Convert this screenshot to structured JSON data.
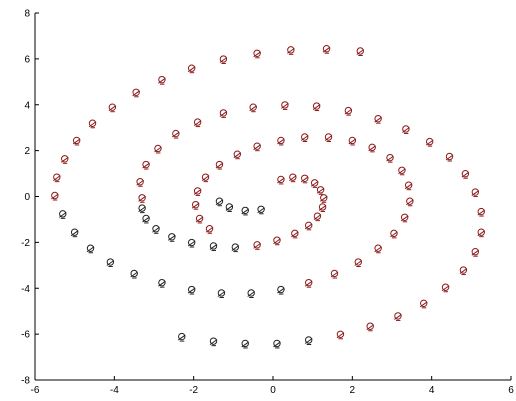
{
  "chart_data": {
    "type": "scatter",
    "title": "",
    "xlabel": "",
    "ylabel": "",
    "xlim": [
      -6,
      6
    ],
    "ylim": [
      -8,
      8
    ],
    "grid": false,
    "x_ticks": [
      "-6",
      "-4",
      "-2",
      "0",
      "2",
      "4",
      "6"
    ],
    "y_ticks": [
      "-8",
      "-6",
      "-4",
      "-2",
      "0",
      "2",
      "4",
      "6",
      "8"
    ],
    "series": [
      {
        "color": "#8b1a1a",
        "marker": "circle-with-cross",
        "points": [
          [
            0.2,
            0.7
          ],
          [
            0.5,
            0.8
          ],
          [
            0.8,
            0.75
          ],
          [
            1.05,
            0.55
          ],
          [
            1.2,
            0.25
          ],
          [
            1.28,
            -0.1
          ],
          [
            1.25,
            -0.5
          ],
          [
            1.12,
            -0.9
          ],
          [
            0.9,
            -1.3
          ],
          [
            0.55,
            -1.65
          ],
          [
            0.1,
            -1.95
          ],
          [
            -0.4,
            -2.15
          ],
          [
            -1.6,
            -1.45
          ],
          [
            -1.85,
            -1.0
          ],
          [
            -1.95,
            -0.4
          ],
          [
            -1.9,
            0.2
          ],
          [
            -1.7,
            0.8
          ],
          [
            -1.35,
            1.35
          ],
          [
            -0.9,
            1.8
          ],
          [
            -0.4,
            2.15
          ],
          [
            0.2,
            2.4
          ],
          [
            0.8,
            2.55
          ],
          [
            1.4,
            2.55
          ],
          [
            2.0,
            2.4
          ],
          [
            2.5,
            2.1
          ],
          [
            2.95,
            1.65
          ],
          [
            3.25,
            1.1
          ],
          [
            3.42,
            0.45
          ],
          [
            3.45,
            -0.25
          ],
          [
            3.32,
            -0.95
          ],
          [
            3.05,
            -1.65
          ],
          [
            2.65,
            -2.3
          ],
          [
            2.15,
            -2.9
          ],
          [
            1.55,
            -3.4
          ],
          [
            0.9,
            -3.8
          ],
          [
            -3.3,
            -0.1
          ],
          [
            -3.35,
            0.6
          ],
          [
            -3.2,
            1.35
          ],
          [
            -2.9,
            2.05
          ],
          [
            -2.45,
            2.7
          ],
          [
            -1.9,
            3.2
          ],
          [
            -1.25,
            3.6
          ],
          [
            -0.5,
            3.85
          ],
          [
            0.3,
            3.95
          ],
          [
            1.1,
            3.9
          ],
          [
            1.9,
            3.7
          ],
          [
            2.65,
            3.35
          ],
          [
            3.35,
            2.9
          ],
          [
            3.95,
            2.35
          ],
          [
            4.45,
            1.7
          ],
          [
            4.85,
            0.95
          ],
          [
            5.1,
            0.15
          ],
          [
            5.25,
            -0.7
          ],
          [
            5.25,
            -1.6
          ],
          [
            5.1,
            -2.45
          ],
          [
            4.8,
            -3.25
          ],
          [
            4.35,
            -4.0
          ],
          [
            3.8,
            -4.7
          ],
          [
            3.15,
            -5.25
          ],
          [
            2.45,
            -5.7
          ],
          [
            1.7,
            -6.05
          ],
          [
            -5.5,
            0.0
          ],
          [
            -5.45,
            0.8
          ],
          [
            -5.25,
            1.6
          ],
          [
            -4.95,
            2.4
          ],
          [
            -4.55,
            3.15
          ],
          [
            -4.05,
            3.85
          ],
          [
            -3.45,
            4.5
          ],
          [
            -2.8,
            5.05
          ],
          [
            -2.05,
            5.55
          ],
          [
            -1.25,
            5.95
          ],
          [
            -0.4,
            6.2
          ],
          [
            0.45,
            6.35
          ],
          [
            1.35,
            6.4
          ],
          [
            2.2,
            6.3
          ]
        ]
      },
      {
        "color": "#222222",
        "marker": "circle-with-cross",
        "points": [
          [
            -0.3,
            -0.6
          ],
          [
            -0.7,
            -0.65
          ],
          [
            -1.1,
            -0.5
          ],
          [
            -1.35,
            -0.25
          ],
          [
            -0.95,
            -2.25
          ],
          [
            -1.5,
            -2.2
          ],
          [
            -2.05,
            -2.05
          ],
          [
            -2.55,
            -1.8
          ],
          [
            -2.95,
            -1.45
          ],
          [
            -3.2,
            -1.0
          ],
          [
            -3.3,
            -0.55
          ],
          [
            0.2,
            -4.1
          ],
          [
            -0.55,
            -4.25
          ],
          [
            -1.3,
            -4.25
          ],
          [
            -2.05,
            -4.1
          ],
          [
            -2.8,
            -3.8
          ],
          [
            -3.5,
            -3.4
          ],
          [
            -4.1,
            -2.9
          ],
          [
            -4.6,
            -2.3
          ],
          [
            -5.0,
            -1.6
          ],
          [
            -5.3,
            -0.8
          ],
          [
            0.9,
            -6.3
          ],
          [
            0.1,
            -6.45
          ],
          [
            -0.7,
            -6.45
          ],
          [
            -1.5,
            -6.35
          ],
          [
            -2.3,
            -6.15
          ]
        ]
      }
    ]
  }
}
